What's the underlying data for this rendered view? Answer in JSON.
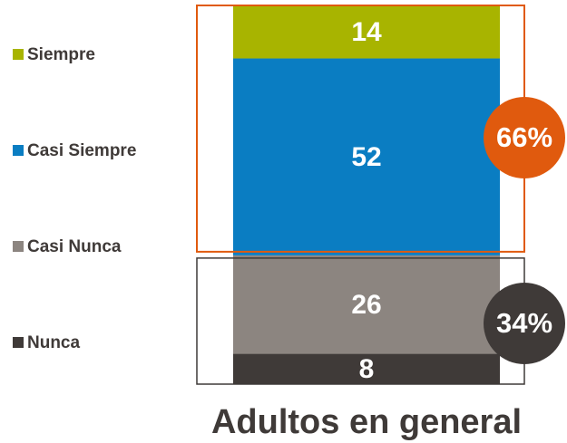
{
  "chart_data": {
    "type": "stacked-bar",
    "categories": [
      "Adultos en general"
    ],
    "series": [
      {
        "name": "Nunca",
        "color": "#3f3a38",
        "values": [
          8
        ]
      },
      {
        "name": "Casi Nunca",
        "color": "#8c8580",
        "values": [
          26
        ]
      },
      {
        "name": "Casi Siempre",
        "color": "#0a7dc2",
        "values": [
          52
        ]
      },
      {
        "name": "Siempre",
        "color": "#a8b400",
        "values": [
          14
        ]
      }
    ],
    "annotations": [
      {
        "value": 66,
        "label": "66%",
        "color": "#e05a0e"
      },
      {
        "value": 34,
        "label": "34%",
        "color": "#3f3a38"
      }
    ]
  }
}
